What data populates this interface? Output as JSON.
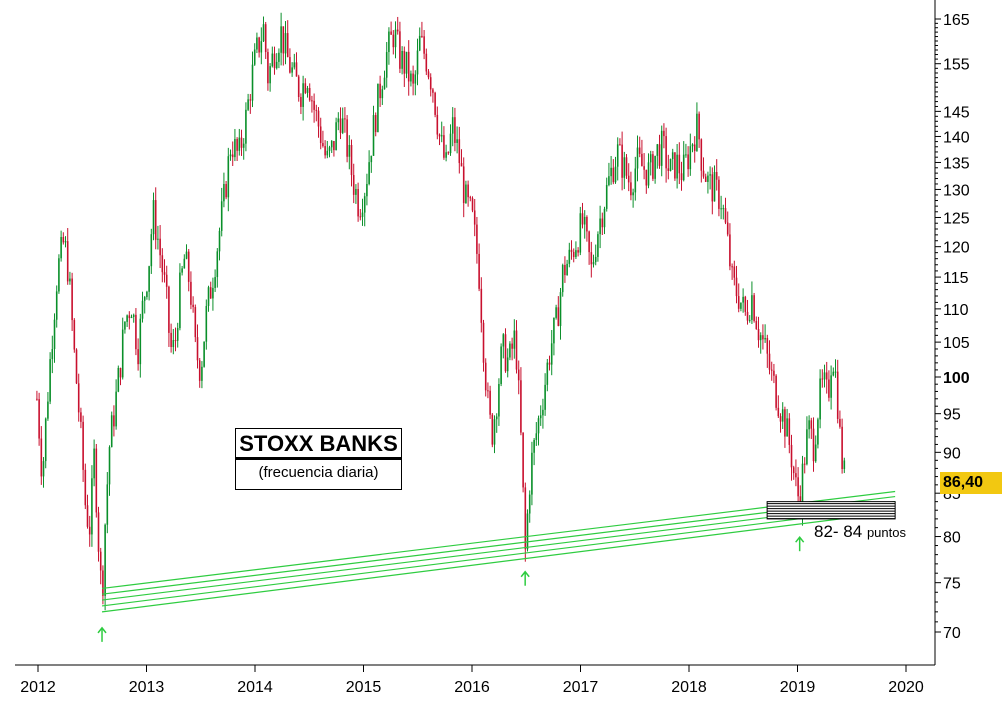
{
  "chart_data": {
    "type": "candlestick",
    "title": "STOXX BANKS",
    "subtitle": "(frecuencia diaria)",
    "x_ticks": [
      "2012",
      "2013",
      "2014",
      "2015",
      "2016",
      "2017",
      "2018",
      "2019",
      "2020"
    ],
    "y_ticks": [
      70,
      75,
      80,
      85,
      90,
      95,
      100,
      105,
      110,
      115,
      120,
      125,
      130,
      135,
      140,
      145,
      155,
      165
    ],
    "y_scale": "log",
    "ylim": [
      67,
      170
    ],
    "xlim": [
      2011.9,
      2020.3
    ],
    "last_price_label": "86,40",
    "last_price": 86.4,
    "zone": {
      "label": "82- 84",
      "label_unit": "puntos",
      "low": 82,
      "high": 84
    },
    "support_channel": {
      "lines": 5,
      "start": [
        2012.59,
        72.0
      ],
      "end": [
        2019.9,
        82.8
      ],
      "spacing": 0.6,
      "color": "#2ecc40"
    },
    "arrows": [
      {
        "x": 2012.59,
        "y": 71.0
      },
      {
        "x": 2016.49,
        "y": 76.8
      },
      {
        "x": 2019.02,
        "y": 80.6
      }
    ],
    "price_path": [
      [
        2011.99,
        97
      ],
      [
        2012.04,
        87
      ],
      [
        2012.12,
        104
      ],
      [
        2012.18,
        116
      ],
      [
        2012.24,
        121
      ],
      [
        2012.28,
        116
      ],
      [
        2012.33,
        104
      ],
      [
        2012.4,
        91
      ],
      [
        2012.44,
        83
      ],
      [
        2012.48,
        81
      ],
      [
        2012.52,
        90
      ],
      [
        2012.55,
        81
      ],
      [
        2012.59,
        73
      ],
      [
        2012.62,
        82
      ],
      [
        2012.66,
        91
      ],
      [
        2012.71,
        96
      ],
      [
        2012.76,
        102
      ],
      [
        2012.8,
        108
      ],
      [
        2012.86,
        111
      ],
      [
        2012.92,
        104
      ],
      [
        2012.97,
        111
      ],
      [
        2013.02,
        117
      ],
      [
        2013.06,
        126
      ],
      [
        2013.1,
        122
      ],
      [
        2013.14,
        117
      ],
      [
        2013.18,
        112
      ],
      [
        2013.22,
        104
      ],
      [
        2013.26,
        104
      ],
      [
        2013.3,
        112
      ],
      [
        2013.35,
        118
      ],
      [
        2013.4,
        114
      ],
      [
        2013.45,
        104
      ],
      [
        2013.5,
        101
      ],
      [
        2013.55,
        109
      ],
      [
        2013.6,
        114
      ],
      [
        2013.66,
        121
      ],
      [
        2013.72,
        129
      ],
      [
        2013.78,
        139
      ],
      [
        2013.85,
        136
      ],
      [
        2013.92,
        144
      ],
      [
        2013.97,
        152
      ],
      [
        2014.02,
        158
      ],
      [
        2014.08,
        163
      ],
      [
        2014.12,
        152
      ],
      [
        2014.18,
        158
      ],
      [
        2014.24,
        162
      ],
      [
        2014.3,
        156
      ],
      [
        2014.36,
        152
      ],
      [
        2014.42,
        149
      ],
      [
        2014.48,
        153
      ],
      [
        2014.54,
        146
      ],
      [
        2014.6,
        141
      ],
      [
        2014.66,
        135
      ],
      [
        2014.72,
        138
      ],
      [
        2014.78,
        145
      ],
      [
        2014.84,
        139
      ],
      [
        2014.9,
        132
      ],
      [
        2014.96,
        127
      ],
      [
        2015.02,
        131
      ],
      [
        2015.08,
        140
      ],
      [
        2015.14,
        148
      ],
      [
        2015.2,
        156
      ],
      [
        2015.28,
        162
      ],
      [
        2015.34,
        156
      ],
      [
        2015.4,
        154
      ],
      [
        2015.46,
        149
      ],
      [
        2015.52,
        160
      ],
      [
        2015.58,
        156
      ],
      [
        2015.64,
        150
      ],
      [
        2015.7,
        140
      ],
      [
        2015.76,
        134
      ],
      [
        2015.82,
        142
      ],
      [
        2015.88,
        136
      ],
      [
        2015.94,
        128
      ],
      [
        2016.0,
        125
      ],
      [
        2016.06,
        117
      ],
      [
        2016.1,
        106
      ],
      [
        2016.14,
        97
      ],
      [
        2016.18,
        92
      ],
      [
        2016.22,
        96
      ],
      [
        2016.28,
        104
      ],
      [
        2016.34,
        102
      ],
      [
        2016.4,
        106
      ],
      [
        2016.45,
        92
      ],
      [
        2016.49,
        78
      ],
      [
        2016.54,
        88
      ],
      [
        2016.6,
        93
      ],
      [
        2016.66,
        98
      ],
      [
        2016.72,
        104
      ],
      [
        2016.78,
        108
      ],
      [
        2016.84,
        116
      ],
      [
        2016.9,
        118
      ],
      [
        2016.96,
        121
      ],
      [
        2017.02,
        124
      ],
      [
        2017.06,
        120
      ],
      [
        2017.1,
        116
      ],
      [
        2017.16,
        123
      ],
      [
        2017.22,
        128
      ],
      [
        2017.28,
        133
      ],
      [
        2017.34,
        137
      ],
      [
        2017.4,
        134
      ],
      [
        2017.46,
        131
      ],
      [
        2017.52,
        135
      ],
      [
        2017.58,
        134
      ],
      [
        2017.64,
        133
      ],
      [
        2017.7,
        137
      ],
      [
        2017.76,
        138
      ],
      [
        2017.82,
        133
      ],
      [
        2017.88,
        135
      ],
      [
        2017.94,
        133
      ],
      [
        2017.99,
        136
      ],
      [
        2018.04,
        140
      ],
      [
        2018.08,
        142
      ],
      [
        2018.12,
        135
      ],
      [
        2018.18,
        131
      ],
      [
        2018.24,
        130
      ],
      [
        2018.3,
        128
      ],
      [
        2018.36,
        120
      ],
      [
        2018.4,
        114
      ],
      [
        2018.46,
        112
      ],
      [
        2018.52,
        109
      ],
      [
        2018.58,
        112
      ],
      [
        2018.64,
        107
      ],
      [
        2018.7,
        104
      ],
      [
        2018.76,
        100
      ],
      [
        2018.82,
        97
      ],
      [
        2018.88,
        94
      ],
      [
        2018.94,
        90
      ],
      [
        2018.98,
        86
      ],
      [
        2019.02,
        84
      ],
      [
        2019.06,
        89
      ],
      [
        2019.1,
        93
      ],
      [
        2019.15,
        91
      ],
      [
        2019.2,
        97
      ],
      [
        2019.24,
        99
      ],
      [
        2019.28,
        97
      ],
      [
        2019.32,
        104
      ],
      [
        2019.36,
        99
      ],
      [
        2019.4,
        90
      ],
      [
        2019.44,
        86.4
      ]
    ]
  }
}
